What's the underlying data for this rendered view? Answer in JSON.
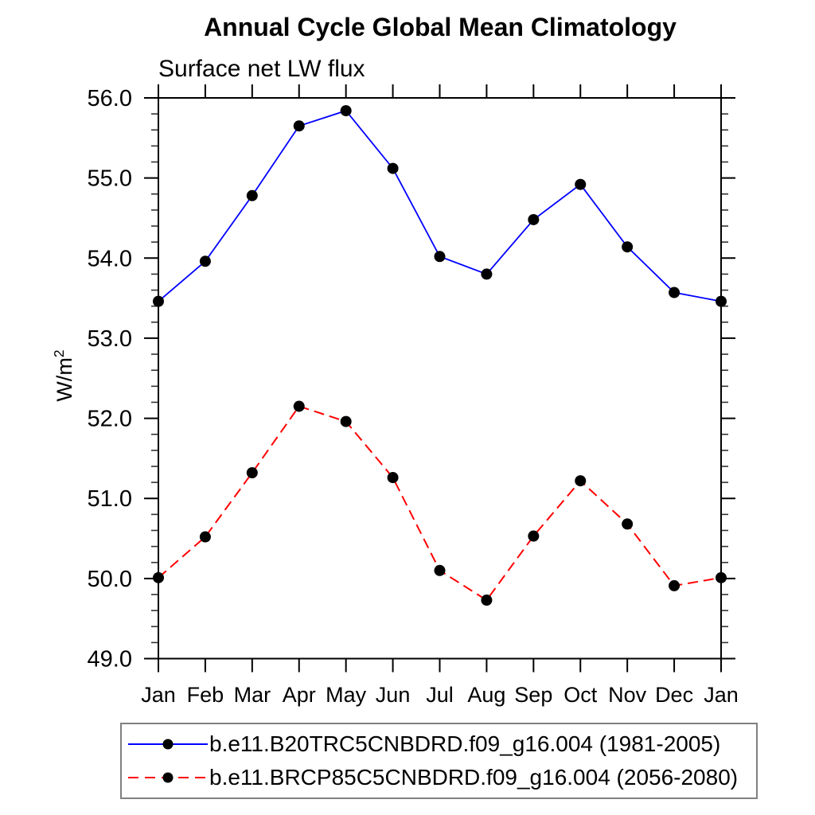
{
  "chart": {
    "title": "Annual Cycle Global Mean Climatology",
    "subtitle": "Surface net LW flux",
    "ylabel_base": "W/m",
    "ylabel_sup": "2"
  },
  "chart_data": {
    "type": "line",
    "title": "Annual Cycle Global Mean Climatology",
    "subtitle": "Surface net LW flux",
    "ylabel": "W/m²",
    "categories": [
      "Jan",
      "Feb",
      "Mar",
      "Apr",
      "May",
      "Jun",
      "Jul",
      "Aug",
      "Sep",
      "Oct",
      "Nov",
      "Dec",
      "Jan"
    ],
    "ylim": [
      49.0,
      56.0
    ],
    "ytick_major_step": 1.0,
    "ytick_minor_step": 0.2,
    "ytick_label_format": "one_decimal",
    "grid": false,
    "legend_position": "bottom",
    "axis_color": "#000000",
    "series": [
      {
        "name": "b.e11.B20TRC5CNBDRD.f09_g16.004 (1981-2005)",
        "line_color": "#0000ff",
        "line_style": "solid",
        "marker": "filled-circle",
        "marker_color": "#000000",
        "values": [
          53.46,
          53.96,
          54.78,
          55.65,
          55.84,
          55.12,
          54.02,
          53.8,
          54.48,
          54.92,
          54.14,
          53.57,
          53.46
        ]
      },
      {
        "name": "b.e11.BRCP85C5CNBDRD.f09_g16.004 (2056-2080)",
        "line_color": "#ff0000",
        "line_style": "dashed",
        "marker": "filled-circle",
        "marker_color": "#000000",
        "values": [
          50.01,
          50.52,
          51.32,
          52.15,
          51.96,
          51.26,
          50.1,
          49.73,
          50.53,
          51.22,
          50.68,
          49.91,
          50.01
        ]
      }
    ]
  }
}
